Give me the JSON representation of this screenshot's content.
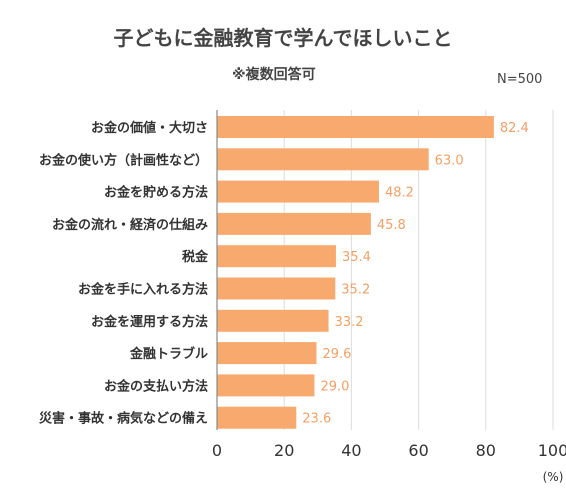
{
  "chart_data": {
    "type": "bar",
    "orientation": "horizontal",
    "title": "子どもに金融教育で学んでほしいこと",
    "subtitle": "※複数回答可",
    "sample": "N=500",
    "categories": [
      "お金の価値・大切さ",
      "お金の使い方（計画性など）",
      "お金を貯める方法",
      "お金の流れ・経済の仕組み",
      "税金",
      "お金を手に入れる方法",
      "お金を運用する方法",
      "金融トラブル",
      "お金の支払い方法",
      "災害・事故・病気などの備え"
    ],
    "values": [
      82.4,
      63.0,
      48.2,
      45.8,
      35.4,
      35.2,
      33.2,
      29.6,
      29.0,
      23.6
    ],
    "value_labels": [
      "82.4",
      "63.0",
      "48.2",
      "45.8",
      "35.4",
      "35.2",
      "33.2",
      "29.6",
      "29.0",
      "23.6"
    ],
    "xlim": [
      0,
      100
    ],
    "xticks": [
      "0",
      "20",
      "40",
      "60",
      "80",
      "100"
    ],
    "xunit": "(%)",
    "grid": true,
    "bar_color": "#F8A96E",
    "value_color": "#F4A064",
    "grid_color": "#DDDDDD",
    "axis_color": "#888888"
  }
}
